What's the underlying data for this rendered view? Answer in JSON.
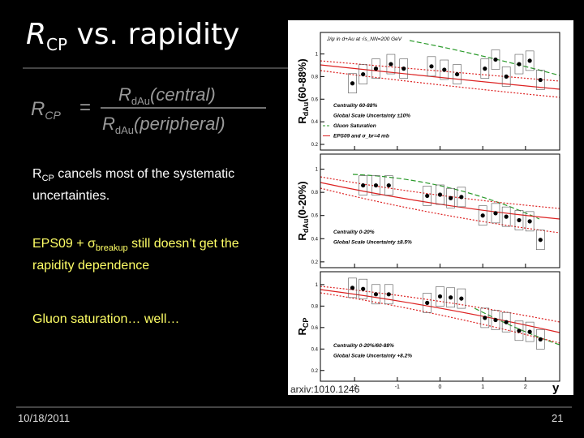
{
  "title": {
    "main": "R",
    "sub": "CP",
    "rest": " vs. rapidity"
  },
  "formula": {
    "lhs": "R",
    "lhs_sub": "CP",
    "equals": "=",
    "num": "R",
    "num_sub": "dAu",
    "num_rest": "(central)",
    "den": "R",
    "den_sub": "dAu",
    "den_rest": "(peripheral)"
  },
  "bullets": [
    {
      "main": "R",
      "sub": "CP",
      "rest": " cancels most of the systematic uncertainties."
    },
    {
      "main": "EPS09 + σ",
      "sub": "breakup",
      "rest": " still doesn’t get the rapidity dependence"
    },
    {
      "main": "Gluon saturation… well…"
    }
  ],
  "figure": {
    "xlim": [
      -2.8,
      2.8
    ],
    "xticks": [
      -2,
      -1,
      0,
      1,
      2
    ],
    "x_label": "y",
    "source": "arxiv:1010.1246",
    "panels": [
      {
        "ylabel": "R",
        "ylabel_sub": "dAu",
        "ylabel_rest": "(60-88%)",
        "ylim": [
          0.15,
          1.19
        ],
        "yticks": [
          0.2,
          0.4,
          0.6,
          0.8,
          1
        ],
        "header": "J/ψ in d+Au at √s_NN=200 GeV",
        "legend": [
          "Centrality 60-88%",
          "Global Scale Uncertainty ±10%",
          "Gluon Saturation",
          "EPS09 and σ_br=4 mb"
        ],
        "x": [
          -2.05,
          -1.8,
          -1.5,
          -1.15,
          -0.85,
          -0.2,
          0.1,
          0.4,
          1.05,
          1.3,
          1.55,
          1.85,
          2.1,
          2.35
        ],
        "y": [
          0.74,
          0.82,
          0.87,
          0.91,
          0.87,
          0.89,
          0.86,
          0.82,
          0.87,
          0.95,
          0.8,
          0.91,
          0.94,
          0.77
        ]
      },
      {
        "ylabel": "R",
        "ylabel_sub": "dAu",
        "ylabel_rest": "(0-20%)",
        "ylim": [
          0.15,
          1.13
        ],
        "yticks": [
          0.2,
          0.4,
          0.6,
          0.8,
          1
        ],
        "legend": [
          "Centrality 0-20%",
          "Global Scale Uncertainty ±8.5%"
        ],
        "x": [
          -1.8,
          -1.5,
          -1.2,
          -0.3,
          0,
          0.25,
          0.5,
          1,
          1.3,
          1.55,
          1.85,
          2.1,
          2.35
        ],
        "y": [
          0.86,
          0.86,
          0.86,
          0.77,
          0.78,
          0.75,
          0.76,
          0.6,
          0.62,
          0.59,
          0.56,
          0.55,
          0.39
        ]
      },
      {
        "ylabel": "R",
        "ylabel_sub": "CP",
        "ylim": [
          0.1,
          1.12
        ],
        "yticks": [
          0.2,
          0.4,
          0.6,
          0.8,
          1
        ],
        "legend": [
          "Centrality 0-20%/60-88%",
          "Global Scale Uncertainty +8.2%"
        ],
        "x": [
          -2.05,
          -1.8,
          -1.5,
          -1.2,
          -0.3,
          0,
          0.25,
          0.5,
          1.05,
          1.3,
          1.55,
          1.85,
          2.1,
          2.35
        ],
        "y": [
          0.97,
          0.96,
          0.91,
          0.91,
          0.83,
          0.89,
          0.88,
          0.87,
          0.69,
          0.67,
          0.65,
          0.57,
          0.56,
          0.49
        ]
      }
    ]
  },
  "footer": {
    "date": "10/18/2011",
    "page": "21"
  }
}
